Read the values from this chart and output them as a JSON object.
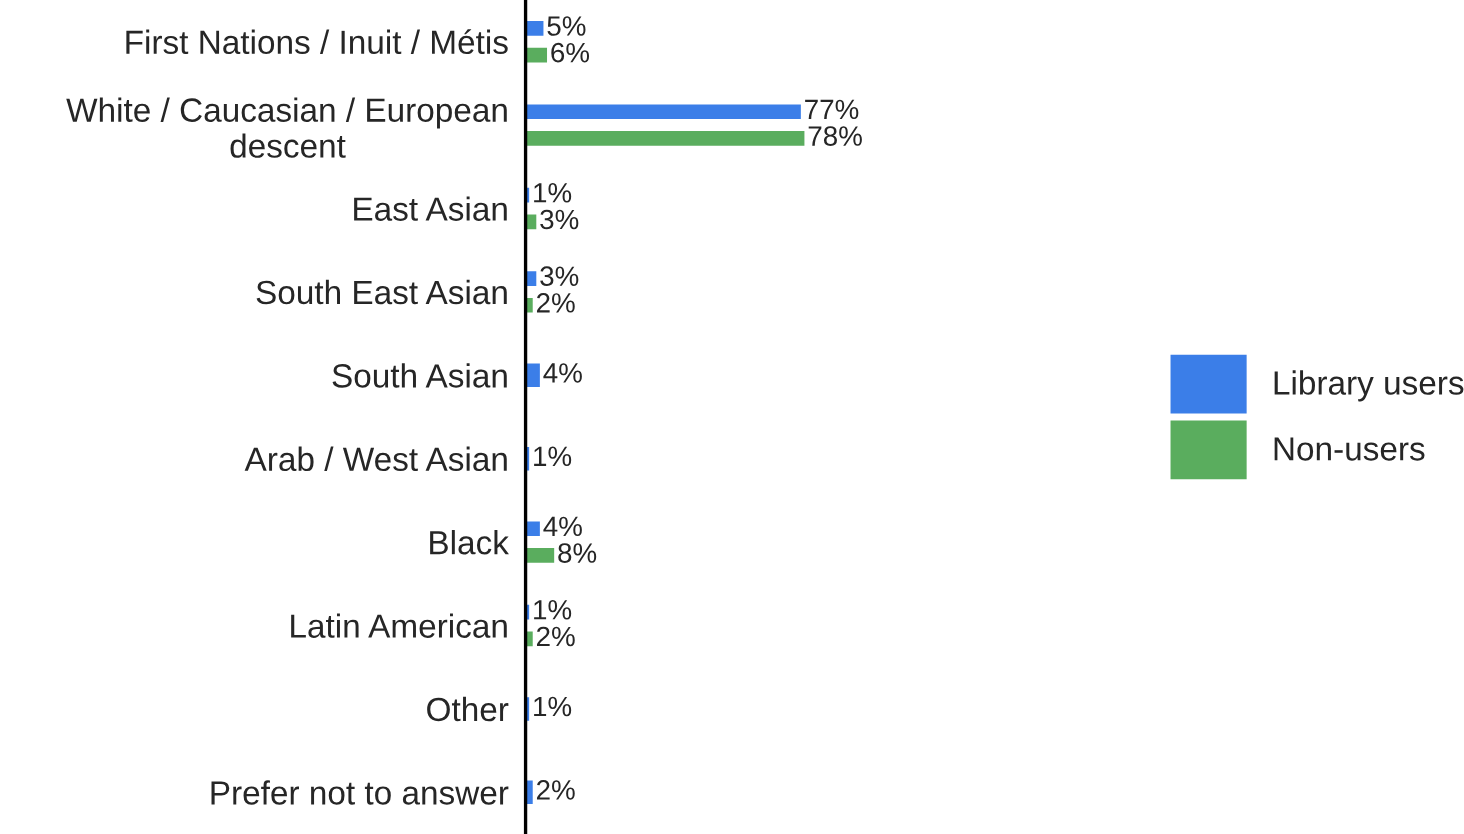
{
  "chart_data": {
    "type": "bar",
    "orientation": "horizontal",
    "legend": "right",
    "categories": [
      "First Nations / Inuit / Métis",
      "White / Caucasian / European descent",
      "East Asian",
      "South East Asian",
      "South Asian",
      "Arab / West Asian",
      "Black",
      "Latin American",
      "Other",
      "Prefer not to answer"
    ],
    "series": [
      {
        "name": "Library users",
        "color": "#3b7ee8",
        "values": [
          5,
          77,
          1,
          3,
          4,
          1,
          4,
          1,
          1,
          2
        ],
        "value_labels": [
          "5%",
          "77%",
          "1%",
          "3%",
          "4%",
          "1%",
          "4%",
          "1%",
          "1%",
          "2%"
        ]
      },
      {
        "name": "Non-users",
        "color": "#5aad5e",
        "values": [
          6,
          78,
          3,
          2,
          null,
          null,
          8,
          2,
          null,
          null
        ],
        "value_labels": [
          "6%",
          "78%",
          "3%",
          "2%",
          null,
          null,
          "8%",
          "2%",
          null,
          null
        ]
      }
    ]
  }
}
